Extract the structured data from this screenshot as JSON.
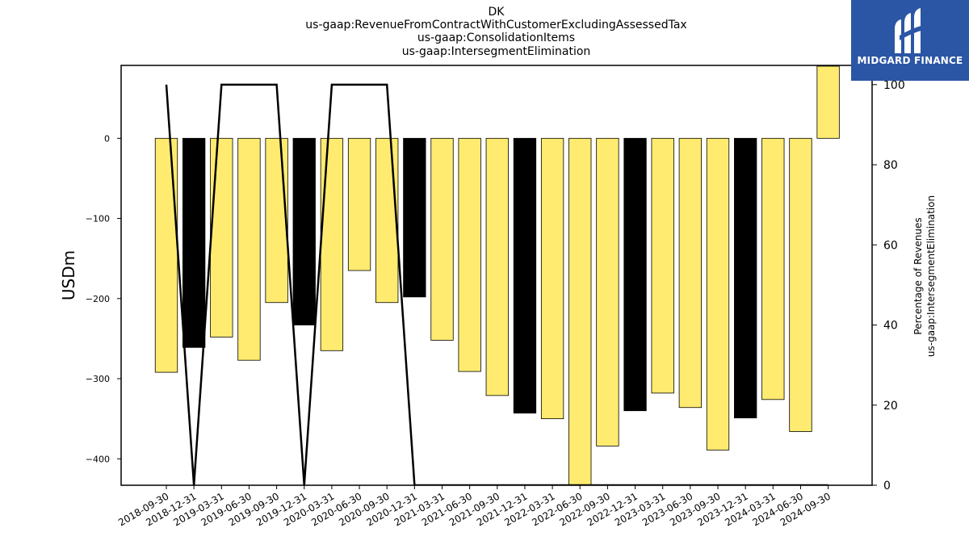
{
  "chart_data": {
    "type": "bar",
    "title_lines": [
      "DK",
      "us-gaap:RevenueFromContractWithCustomerExcludingAssessedTax",
      "us-gaap:ConsolidationItems",
      "us-gaap:IntersegmentElimination"
    ],
    "ylabel": "USDm",
    "y2label_lines": [
      "Percentage of Revenues",
      "us-gaap:IntersegmentElimination"
    ],
    "categories": [
      "2018-09-30",
      "2018-12-31",
      "2019-03-31",
      "2019-06-30",
      "2019-09-30",
      "2019-12-31",
      "2020-03-31",
      "2020-06-30",
      "2020-09-30",
      "2020-12-31",
      "2021-03-31",
      "2021-06-30",
      "2021-09-30",
      "2021-12-31",
      "2022-03-31",
      "2022-06-30",
      "2022-09-30",
      "2022-12-31",
      "2023-03-31",
      "2023-06-30",
      "2023-09-30",
      "2023-12-31",
      "2024-03-31",
      "2024-06-30",
      "2024-09-30"
    ],
    "values": [
      -292,
      -261,
      -248,
      -277,
      -205,
      -233,
      -265,
      -165,
      -205,
      -198,
      -252,
      -291,
      -321,
      -343,
      -350,
      -434,
      -384,
      -340,
      -318,
      -336,
      -389,
      -349,
      -326,
      -366,
      90
    ],
    "bar_colors": [
      "#ffeb70",
      "#000000",
      "#ffeb70",
      "#ffeb70",
      "#ffeb70",
      "#000000",
      "#ffeb70",
      "#ffeb70",
      "#ffeb70",
      "#000000",
      "#ffeb70",
      "#ffeb70",
      "#ffeb70",
      "#000000",
      "#ffeb70",
      "#ffeb70",
      "#ffeb70",
      "#000000",
      "#ffeb70",
      "#ffeb70",
      "#ffeb70",
      "#000000",
      "#ffeb70",
      "#ffeb70",
      "#ffeb70"
    ],
    "line_values": [
      100,
      0,
      100,
      100,
      100,
      0,
      100,
      100,
      100,
      0,
      0,
      0,
      0,
      0,
      0,
      0,
      0,
      0,
      0,
      0,
      0,
      0,
      0,
      0,
      0
    ],
    "ylim": [
      -433,
      91
    ],
    "yticks": [
      0,
      -100,
      -200,
      -300,
      -400
    ],
    "ytick_labels": [
      "0",
      "−100",
      "−200",
      "−300",
      "−400"
    ],
    "y2lim": [
      0,
      104.8
    ],
    "y2ticks": [
      0,
      20,
      40,
      60,
      80,
      100
    ],
    "y2tick_labels": [
      "0",
      "20",
      "40",
      "60",
      "80",
      "100"
    ],
    "grid": false,
    "colors": {
      "bar": "#ffeb70",
      "bar_alt": "#000000",
      "line": "#000000"
    }
  },
  "logo": {
    "text": "MIDGARD FINANCE",
    "background": "#2b56a5"
  }
}
